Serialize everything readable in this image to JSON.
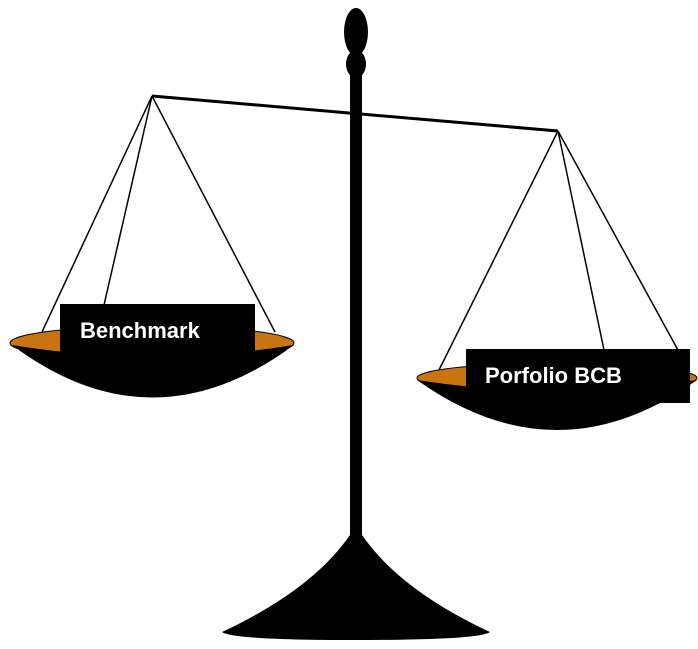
{
  "labels": {
    "left": "Benchmark",
    "right": "Porfolio BCB"
  }
}
